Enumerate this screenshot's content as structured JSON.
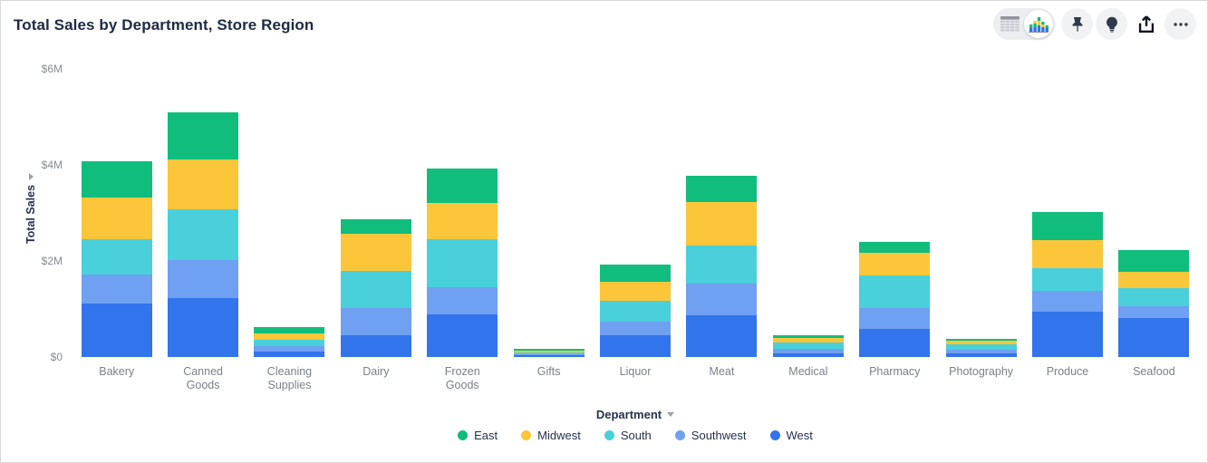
{
  "window": {
    "title": "Total Sales by Department, Store Region"
  },
  "toolbar": {
    "view_toggle": {
      "options": [
        "table",
        "chart"
      ],
      "selected": "chart"
    },
    "buttons": [
      "pin",
      "lightbulb",
      "share",
      "more-options"
    ]
  },
  "chart_data": {
    "type": "bar",
    "stacked": true,
    "title": "Total Sales by Department, Store Region",
    "xlabel": "Department",
    "ylabel": "Total Sales",
    "unit": "USD millions",
    "ylim": [
      0,
      6
    ],
    "grid": false,
    "legend_position": "bottom",
    "y_ticks": [
      {
        "label": "$0",
        "value": 0
      },
      {
        "label": "$2M",
        "value": 2
      },
      {
        "label": "$4M",
        "value": 4
      },
      {
        "label": "$6M",
        "value": 6
      }
    ],
    "categories": [
      "Bakery",
      "Canned Goods",
      "Cleaning Supplies",
      "Dairy",
      "Frozen Goods",
      "Gifts",
      "Liquor",
      "Meat",
      "Medical",
      "Pharmacy",
      "Photography",
      "Produce",
      "Seafood"
    ],
    "stack_order_bottom_to_top": [
      "West",
      "Southwest",
      "South",
      "Midwest",
      "East"
    ],
    "series": [
      {
        "name": "East",
        "color": "#10BD7D",
        "values": [
          0.76,
          0.97,
          0.14,
          0.29,
          0.73,
          0.04,
          0.36,
          0.55,
          0.05,
          0.22,
          0.03,
          0.58,
          0.45
        ]
      },
      {
        "name": "Midwest",
        "color": "#FBC63A",
        "values": [
          0.86,
          1.04,
          0.14,
          0.77,
          0.75,
          0.04,
          0.4,
          0.89,
          0.09,
          0.47,
          0.07,
          0.59,
          0.35
        ]
      },
      {
        "name": "South",
        "color": "#49D0DB",
        "values": [
          0.75,
          1.07,
          0.13,
          0.79,
          1.0,
          0.04,
          0.44,
          0.8,
          0.14,
          0.69,
          0.12,
          0.48,
          0.38
        ]
      },
      {
        "name": "Southwest",
        "color": "#6FA0F1",
        "values": [
          0.6,
          0.79,
          0.11,
          0.56,
          0.57,
          0.03,
          0.27,
          0.67,
          0.09,
          0.42,
          0.07,
          0.43,
          0.23
        ]
      },
      {
        "name": "West",
        "color": "#3274EC",
        "values": [
          1.11,
          1.22,
          0.11,
          0.45,
          0.88,
          0.03,
          0.46,
          0.86,
          0.08,
          0.59,
          0.08,
          0.94,
          0.82
        ]
      }
    ],
    "totals": [
      4.08,
      5.09,
      0.63,
      2.86,
      3.93,
      0.18,
      1.93,
      3.77,
      0.45,
      2.39,
      0.37,
      3.02,
      2.23
    ]
  }
}
